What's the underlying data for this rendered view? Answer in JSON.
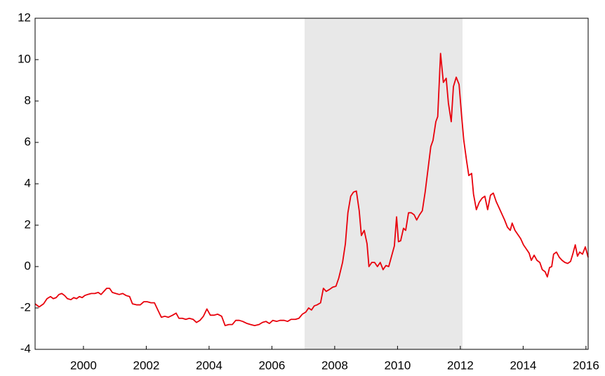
{
  "chart_data": {
    "type": "line",
    "x": [
      1998.46,
      1998.59,
      1998.73,
      1998.84,
      1998.95,
      1999.04,
      1999.13,
      1999.22,
      1999.31,
      1999.4,
      1999.49,
      1999.6,
      1999.69,
      1999.78,
      1999.87,
      1999.96,
      2000.04,
      2000.13,
      2000.25,
      2000.36,
      2000.47,
      2000.56,
      2000.65,
      2000.74,
      2000.83,
      2000.92,
      2001.03,
      2001.14,
      2001.25,
      2001.36,
      2001.47,
      2001.56,
      2001.7,
      2001.81,
      2001.92,
      2002.03,
      2002.15,
      2002.26,
      2002.37,
      2002.48,
      2002.59,
      2002.7,
      2002.84,
      2002.95,
      2003.04,
      2003.15,
      2003.26,
      2003.37,
      2003.49,
      2003.6,
      2003.71,
      2003.82,
      2003.93,
      2004.04,
      2004.16,
      2004.27,
      2004.4,
      2004.51,
      2004.63,
      2004.74,
      2004.85,
      2004.96,
      2005.07,
      2005.21,
      2005.32,
      2005.45,
      2005.59,
      2005.7,
      2005.81,
      2005.92,
      2006.03,
      2006.15,
      2006.26,
      2006.39,
      2006.5,
      2006.61,
      2006.75,
      2006.86,
      2006.97,
      2007.08,
      2007.17,
      2007.26,
      2007.35,
      2007.44,
      2007.55,
      2007.64,
      2007.73,
      2007.84,
      2007.93,
      2008.04,
      2008.13,
      2008.25,
      2008.34,
      2008.42,
      2008.51,
      2008.6,
      2008.69,
      2008.78,
      2008.85,
      2008.94,
      2009.03,
      2009.09,
      2009.18,
      2009.27,
      2009.36,
      2009.45,
      2009.54,
      2009.63,
      2009.72,
      2009.81,
      2009.9,
      2009.97,
      2010.03,
      2010.1,
      2010.19,
      2010.26,
      2010.35,
      2010.44,
      2010.53,
      2010.61,
      2010.7,
      2010.79,
      2010.88,
      2010.97,
      2011.06,
      2011.13,
      2011.22,
      2011.28,
      2011.37,
      2011.46,
      2011.55,
      2011.62,
      2011.71,
      2011.78,
      2011.87,
      2011.96,
      2012.04,
      2012.11,
      2012.2,
      2012.27,
      2012.36,
      2012.42,
      2012.51,
      2012.6,
      2012.69,
      2012.78,
      2012.87,
      2012.96,
      2013.05,
      2013.14,
      2013.23,
      2013.32,
      2013.41,
      2013.5,
      2013.59,
      2013.65,
      2013.74,
      2013.83,
      2013.92,
      2014.01,
      2014.1,
      2014.19,
      2014.26,
      2014.35,
      2014.44,
      2014.53,
      2014.61,
      2014.7,
      2014.77,
      2014.84,
      2014.91,
      2014.97,
      2015.06,
      2015.15,
      2015.24,
      2015.33,
      2015.42,
      2015.51,
      2015.58,
      2015.66,
      2015.73,
      2015.8,
      2015.89,
      2015.98,
      2016.07
    ],
    "series": [
      {
        "color": "#e8000b",
        "values": [
          -1.8,
          -1.95,
          -1.8,
          -1.55,
          -1.45,
          -1.55,
          -1.5,
          -1.35,
          -1.3,
          -1.4,
          -1.55,
          -1.6,
          -1.5,
          -1.55,
          -1.45,
          -1.5,
          -1.4,
          -1.35,
          -1.3,
          -1.3,
          -1.25,
          -1.35,
          -1.2,
          -1.05,
          -1.05,
          -1.25,
          -1.3,
          -1.35,
          -1.3,
          -1.4,
          -1.45,
          -1.8,
          -1.85,
          -1.85,
          -1.7,
          -1.7,
          -1.75,
          -1.75,
          -2.1,
          -2.45,
          -2.4,
          -2.45,
          -2.35,
          -2.25,
          -2.5,
          -2.5,
          -2.55,
          -2.5,
          -2.55,
          -2.7,
          -2.6,
          -2.4,
          -2.05,
          -2.35,
          -2.35,
          -2.3,
          -2.4,
          -2.85,
          -2.8,
          -2.8,
          -2.6,
          -2.6,
          -2.65,
          -2.75,
          -2.8,
          -2.85,
          -2.8,
          -2.7,
          -2.65,
          -2.75,
          -2.6,
          -2.65,
          -2.6,
          -2.6,
          -2.65,
          -2.55,
          -2.55,
          -2.5,
          -2.3,
          -2.2,
          -2.0,
          -2.1,
          -1.9,
          -1.85,
          -1.75,
          -1.05,
          -1.2,
          -1.1,
          -1.0,
          -0.95,
          -0.55,
          0.2,
          1.1,
          2.6,
          3.4,
          3.6,
          3.65,
          2.7,
          1.5,
          1.75,
          1.1,
          0,
          0.2,
          0.2,
          0,
          0.2,
          -0.15,
          0.05,
          0,
          0.5,
          1.0,
          2.4,
          1.2,
          1.25,
          1.85,
          1.75,
          2.6,
          2.6,
          2.5,
          2.25,
          2.5,
          2.7,
          3.6,
          4.7,
          5.8,
          6.1,
          7.0,
          7.25,
          10.3,
          8.9,
          9.1,
          7.9,
          7.0,
          8.7,
          9.15,
          8.8,
          7.3,
          6.1,
          5.1,
          4.4,
          4.5,
          3.5,
          2.75,
          3.1,
          3.3,
          3.4,
          2.75,
          3.45,
          3.55,
          3.15,
          2.85,
          2.55,
          2.25,
          1.9,
          1.75,
          2.1,
          1.75,
          1.55,
          1.35,
          1.05,
          0.85,
          0.65,
          0.3,
          0.55,
          0.3,
          0.2,
          -0.15,
          -0.25,
          -0.5,
          -0.05,
          0,
          0.6,
          0.7,
          0.45,
          0.3,
          0.2,
          0.15,
          0.25,
          0.6,
          1.05,
          0.5,
          0.7,
          0.6,
          0.95,
          0.45
        ]
      }
    ],
    "xlim": [
      1998.46,
      2016.07
    ],
    "xticks": [
      2000,
      2002,
      2004,
      2006,
      2008,
      2010,
      2012,
      2014,
      2016
    ],
    "ylim": [
      -4,
      12
    ],
    "yticks": [
      -4,
      -2,
      0,
      2,
      4,
      6,
      8,
      10,
      12
    ],
    "shaded_region": [
      2007.04,
      2012.07
    ],
    "shade_color": "#e8e8e8",
    "grid": false
  }
}
